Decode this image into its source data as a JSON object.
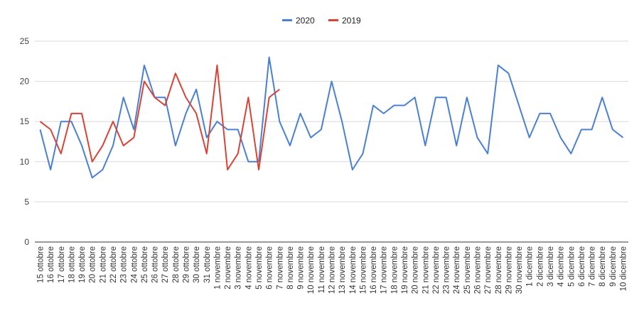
{
  "chart_data": {
    "type": "line",
    "title": "",
    "xlabel": "",
    "ylabel": "",
    "ylim": [
      0,
      25
    ],
    "yticks": [
      0,
      5,
      10,
      15,
      20,
      25
    ],
    "grid": true,
    "legend_position": "top-center",
    "categories": [
      "15 ottobre",
      "16 ottobre",
      "17 ottobre",
      "18 ottobre",
      "19 ottobre",
      "20 ottobre",
      "21 ottobre",
      "22 ottobre",
      "23 ottobre",
      "24 ottobre",
      "25 ottobre",
      "26 ottobre",
      "27 ottobre",
      "28 ottobre",
      "29 ottobre",
      "30 ottobre",
      "31 ottobre",
      "1 novembre",
      "2 novembre",
      "3 novembre",
      "4 novembre",
      "5 novembre",
      "6 novembre",
      "7 novembre",
      "8 novembre",
      "9 novembre",
      "10 novembre",
      "11 novembre",
      "12 novembre",
      "13 novembre",
      "14 novembre",
      "15 novembre",
      "16 novembre",
      "17 novembre",
      "18 novembre",
      "19 novembre",
      "20 novembre",
      "21 novembre",
      "22 novembre",
      "23 novembre",
      "24 novembre",
      "25 novembre",
      "26 novembre",
      "27 novembre",
      "28 novembre",
      "29 novembre",
      "30 novembre",
      "1 dicembre",
      "2 dicembre",
      "3 dicembre",
      "4 dicembre",
      "5 dicembre",
      "6 dicembre",
      "7 dicembre",
      "8 dicembre",
      "9 dicembre",
      "10 dicembre"
    ],
    "series": [
      {
        "name": "2020",
        "color": "#4a7fd6",
        "values": [
          14,
          9,
          15,
          15,
          12,
          8,
          9,
          12,
          18,
          14,
          22,
          18,
          18,
          12,
          16,
          19,
          13,
          15,
          14,
          14,
          10,
          10,
          23,
          15,
          12,
          16,
          13,
          14,
          20,
          15,
          9,
          11,
          17,
          16,
          17,
          17,
          18,
          12,
          18,
          18,
          12,
          18,
          13,
          11,
          22,
          21,
          17,
          13,
          16,
          16,
          13,
          11,
          14,
          14,
          18,
          14,
          13
        ]
      },
      {
        "name": "2019",
        "color": "#d94336",
        "values": [
          15,
          14,
          11,
          16,
          16,
          10,
          12,
          15,
          12,
          13,
          20,
          18,
          17,
          21,
          18,
          16,
          11,
          22,
          9,
          11,
          18,
          9,
          18,
          19,
          null,
          null,
          null,
          null,
          null,
          null,
          null,
          null,
          null,
          null,
          null,
          null,
          null,
          null,
          null,
          null,
          null,
          null,
          null,
          null,
          null,
          null,
          null,
          null,
          null,
          null,
          null,
          null,
          null,
          null,
          null,
          null,
          null
        ]
      }
    ]
  }
}
